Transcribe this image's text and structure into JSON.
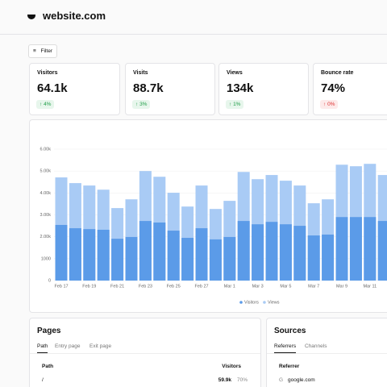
{
  "header": {
    "title": "website.com"
  },
  "filter": "Filter",
  "stats": [
    {
      "label": "Visitors",
      "value": "64.1k",
      "change": "4%"
    },
    {
      "label": "Visits",
      "value": "88.7k",
      "change": "3%"
    },
    {
      "label": "Views",
      "value": "134k",
      "change": "1%"
    },
    {
      "label": "Bounce rate",
      "value": "74%",
      "change": "0%"
    }
  ],
  "chart_data": {
    "type": "bar",
    "categories": [
      "Feb 17",
      null,
      "Feb 19",
      null,
      "Feb 21",
      null,
      "Feb 23",
      null,
      "Feb 25",
      null,
      "Feb 27",
      null,
      "Mar 1",
      null,
      "Mar 3",
      null,
      "Mar 5",
      null,
      "Mar 7",
      null,
      "Mar 9",
      null,
      "Mar 11",
      null
    ],
    "series": [
      {
        "name": "Views",
        "color": "#a9cbf5",
        "values": [
          4710,
          4450,
          4340,
          4150,
          3310,
          3710,
          5000,
          4740,
          4010,
          3380,
          4340,
          3270,
          3640,
          4960,
          4630,
          4820,
          4560,
          4340,
          3530,
          3710,
          5290,
          5220,
          5330,
          4820
        ]
      },
      {
        "name": "Visitors",
        "color": "#5b9be8",
        "values": [
          2540,
          2390,
          2350,
          2320,
          1910,
          1990,
          2720,
          2650,
          2280,
          1950,
          2390,
          1880,
          1990,
          2720,
          2570,
          2680,
          2570,
          2500,
          2060,
          2100,
          2900,
          2900,
          2900,
          2720
        ]
      }
    ],
    "ylim": [
      0,
      6000
    ],
    "yticks": [
      0,
      1000,
      {
        "value": 2000,
        "label": "2.00k"
      },
      {
        "value": 3000,
        "label": "3.00k"
      },
      {
        "value": 4000,
        "label": "4.00k"
      },
      {
        "value": 5000,
        "label": "5.00k"
      },
      {
        "value": 6000,
        "label": "6.00k"
      }
    ],
    "grid": true
  },
  "pages": {
    "title": "Pages",
    "tabs": [
      "Path",
      "Entry page",
      "Exit page"
    ],
    "columns": [
      "Path",
      "Visitors"
    ],
    "rows": [
      [
        "/",
        "59.9k",
        "70%"
      ]
    ]
  },
  "sources": {
    "title": "Sources",
    "tabs": [
      "Referrers",
      "Channels"
    ],
    "columns": [
      "Referrer"
    ],
    "rows": [
      [
        "google.com"
      ]
    ]
  }
}
